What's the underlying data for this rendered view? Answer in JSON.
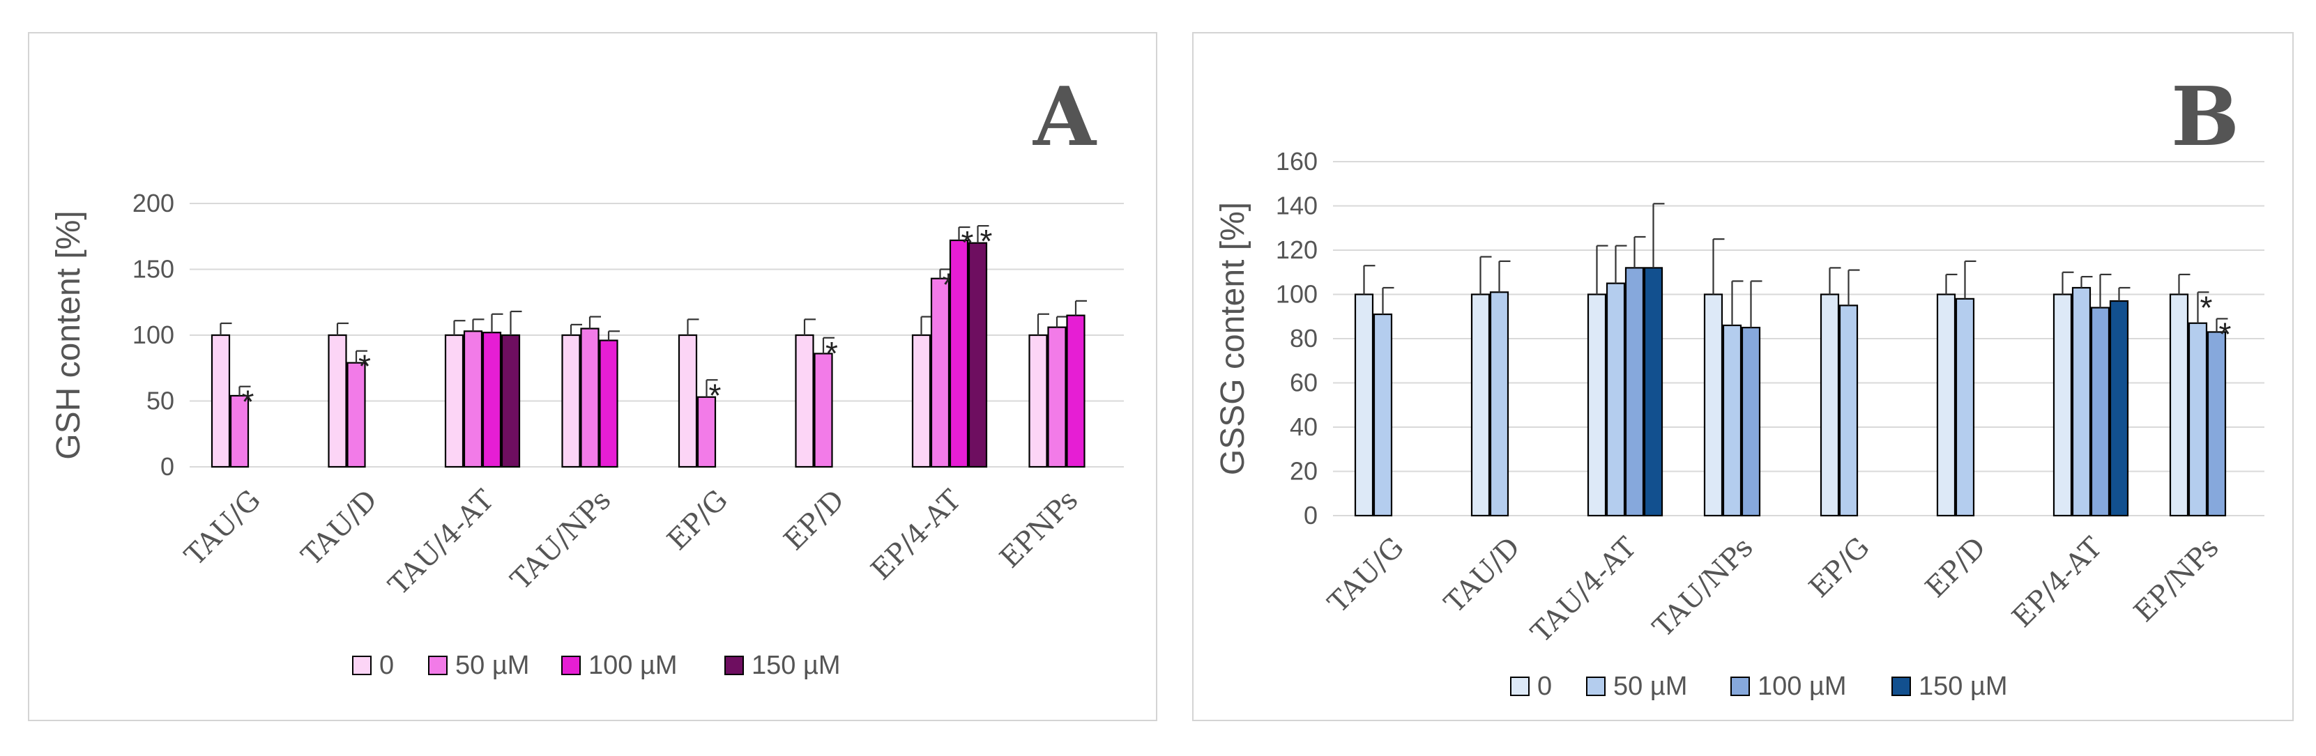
{
  "chart_data": [
    {
      "type": "bar",
      "id": "A",
      "panel_label": "A",
      "ylabel": "GSH content [%]",
      "xlabel": "",
      "ylim": [
        0,
        200
      ],
      "yticks": [
        0,
        50,
        100,
        150,
        200
      ],
      "grid": true,
      "legend_position": "bottom",
      "categories": [
        "TAU/G",
        "TAU/D",
        "TAU/4-AT",
        "TAU/NPs",
        "EP/G",
        "EP/D",
        "EP/4-AT",
        "EPNPs"
      ],
      "series": [
        {
          "name": "0",
          "color": "#fcd5f6",
          "values": [
            100,
            100,
            100,
            100,
            100,
            100,
            100,
            100
          ],
          "errors": [
            9,
            9,
            11,
            8,
            12,
            12,
            14,
            16
          ],
          "significant": [
            false,
            false,
            false,
            false,
            false,
            false,
            false,
            false
          ]
        },
        {
          "name": "50 µM",
          "color": "#f27be8",
          "values": [
            54,
            79,
            103,
            105,
            53,
            86,
            143,
            106
          ],
          "errors": [
            7,
            9,
            9,
            9,
            13,
            12,
            7,
            8
          ],
          "significant": [
            true,
            true,
            false,
            false,
            true,
            true,
            true,
            false
          ]
        },
        {
          "name": "100 µM",
          "color": "#e61ed4",
          "values": [
            null,
            null,
            102,
            96,
            null,
            null,
            172,
            115
          ],
          "errors": [
            null,
            null,
            14,
            7,
            null,
            null,
            10,
            11
          ],
          "significant": [
            false,
            false,
            false,
            false,
            false,
            false,
            true,
            false
          ]
        },
        {
          "name": "150 µM",
          "color": "#6e0e60",
          "values": [
            null,
            null,
            100,
            null,
            null,
            null,
            170,
            null
          ],
          "errors": [
            null,
            null,
            18,
            null,
            null,
            null,
            13,
            null
          ],
          "significant": [
            false,
            false,
            false,
            false,
            false,
            false,
            true,
            false
          ]
        }
      ]
    },
    {
      "type": "bar",
      "id": "B",
      "panel_label": "B",
      "ylabel": "GSSG content [%]",
      "xlabel": "",
      "ylim": [
        0,
        160
      ],
      "yticks": [
        0,
        20,
        40,
        60,
        80,
        100,
        120,
        140,
        160
      ],
      "grid": true,
      "legend_position": "bottom",
      "categories": [
        "TAU/G",
        "TAU/D",
        "TAU/4-AT",
        "TAU/NPs",
        "EP/G",
        "EP/D",
        "EP/4-AT",
        "EP/NPs"
      ],
      "series": [
        {
          "name": "0",
          "color": "#dde9f7",
          "values": [
            100,
            100,
            100,
            100,
            100,
            100,
            100,
            100
          ],
          "errors": [
            13,
            17,
            22,
            25,
            12,
            9,
            10,
            9
          ],
          "significant": [
            false,
            false,
            false,
            false,
            false,
            false,
            false,
            false
          ]
        },
        {
          "name": "50 µM",
          "color": "#b4cdee",
          "values": [
            91,
            101,
            105,
            86,
            95,
            98,
            103,
            87
          ],
          "errors": [
            12,
            14,
            17,
            20,
            16,
            17,
            5,
            14
          ],
          "significant": [
            false,
            false,
            false,
            false,
            false,
            false,
            false,
            true
          ]
        },
        {
          "name": "100 µM",
          "color": "#86a8dc",
          "values": [
            null,
            null,
            112,
            85,
            null,
            null,
            94,
            83
          ],
          "errors": [
            null,
            null,
            14,
            21,
            null,
            null,
            15,
            6
          ],
          "significant": [
            false,
            false,
            false,
            false,
            false,
            false,
            false,
            true
          ]
        },
        {
          "name": "150 µM",
          "color": "#12508f",
          "values": [
            null,
            null,
            112,
            null,
            null,
            null,
            97,
            null
          ],
          "errors": [
            null,
            null,
            29,
            null,
            null,
            null,
            6,
            null
          ],
          "significant": [
            false,
            false,
            false,
            false,
            false,
            false,
            false,
            false
          ]
        }
      ]
    }
  ]
}
